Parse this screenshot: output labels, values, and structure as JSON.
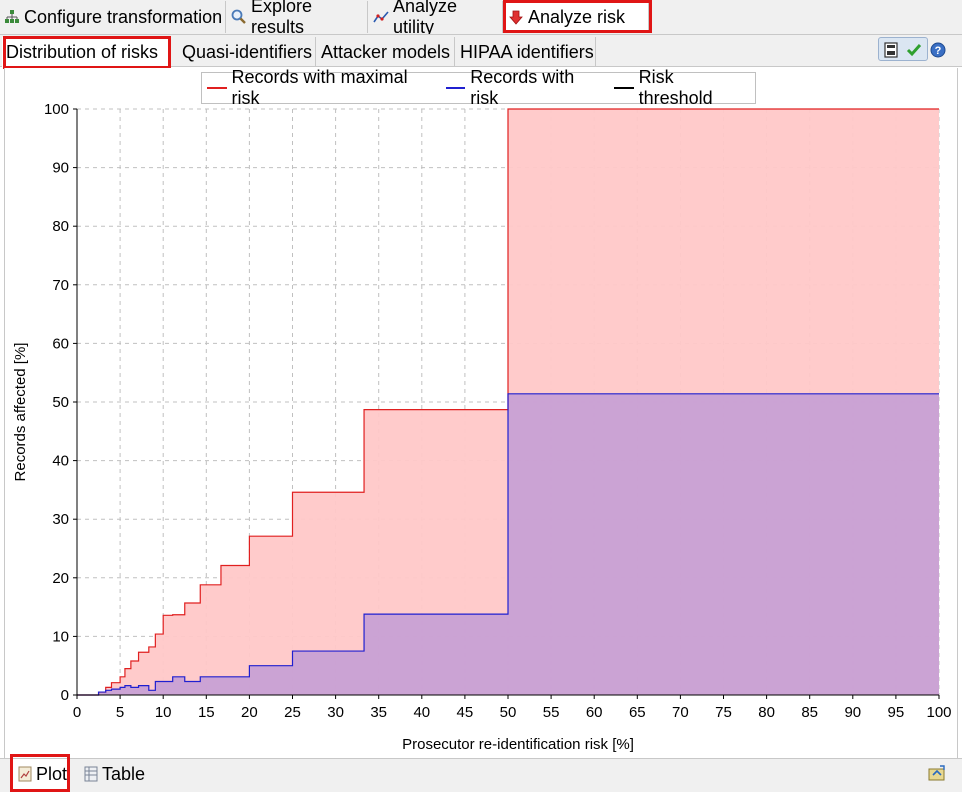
{
  "top_tabs": [
    {
      "label": "Configure transformation",
      "icon": "transformation-tree-icon"
    },
    {
      "label": "Explore results",
      "icon": "magnifier-icon"
    },
    {
      "label": "Analyze utility",
      "icon": "utility-chart-icon"
    },
    {
      "label": "Analyze risk",
      "icon": "risk-down-arrow-icon",
      "active": true
    }
  ],
  "sub_tabs": [
    {
      "label": "Distribution of risks",
      "active": true
    },
    {
      "label": "Quasi-identifiers"
    },
    {
      "label": "Attacker models"
    },
    {
      "label": "HIPAA identifiers"
    }
  ],
  "toolbar": {
    "icons": [
      "save-icon",
      "checkmark-icon",
      "help-icon"
    ]
  },
  "bottom_tabs": [
    {
      "label": "Plot",
      "icon": "plot-icon",
      "active": true
    },
    {
      "label": "Table",
      "icon": "table-icon"
    }
  ],
  "bottom_toolbar_icon": "export-icon",
  "colors": {
    "max_risk_line": "#e02020",
    "max_risk_fill": "#ffc8c8",
    "risk_line": "#2020d0",
    "risk_fill": "#c8a0d4",
    "threshold_line": "#000000",
    "highlight": "#e01515"
  },
  "chart_data": {
    "type": "area",
    "xlabel": "Prosecutor re-identification risk [%]",
    "ylabel": "Records affected [%]",
    "xlim": [
      0,
      100
    ],
    "ylim": [
      0,
      100
    ],
    "x_ticks": [
      0,
      5,
      10,
      15,
      20,
      25,
      30,
      35,
      40,
      45,
      50,
      55,
      60,
      65,
      70,
      75,
      80,
      85,
      90,
      95,
      100
    ],
    "y_ticks": [
      0,
      10,
      20,
      30,
      40,
      50,
      60,
      70,
      80,
      90,
      100
    ],
    "grid": true,
    "legend_position": "top",
    "series": [
      {
        "name": "Records with maximal risk",
        "step": true,
        "x": [
          0,
          2,
          2.5,
          3.33,
          4,
          5,
          5.56,
          6.25,
          7.14,
          8.33,
          9.09,
          10,
          11.1,
          12.5,
          14.3,
          16.7,
          20,
          25,
          33.3,
          50,
          100
        ],
        "y": [
          0,
          0,
          0.5,
          1.3,
          2.1,
          3.1,
          4.5,
          5.8,
          7.3,
          8.2,
          10.4,
          13.6,
          13.7,
          15.7,
          18.8,
          22.1,
          27.1,
          34.6,
          48.7,
          100,
          100
        ]
      },
      {
        "name": "Records with risk",
        "step": true,
        "x": [
          0,
          2,
          2.5,
          3.33,
          4,
          5,
          5.56,
          6.25,
          7.14,
          8.33,
          9.09,
          10,
          11.1,
          12.5,
          14.3,
          16.7,
          20,
          25,
          33.3,
          50,
          100
        ],
        "y": [
          0,
          0,
          0.5,
          0.8,
          1.0,
          1.3,
          1.6,
          1.3,
          1.6,
          0.8,
          2.3,
          2.3,
          3.1,
          2.3,
          3.1,
          3.1,
          5.0,
          7.5,
          13.8,
          51.4,
          51.4
        ]
      },
      {
        "name": "Risk threshold",
        "x": [],
        "y": []
      }
    ]
  }
}
